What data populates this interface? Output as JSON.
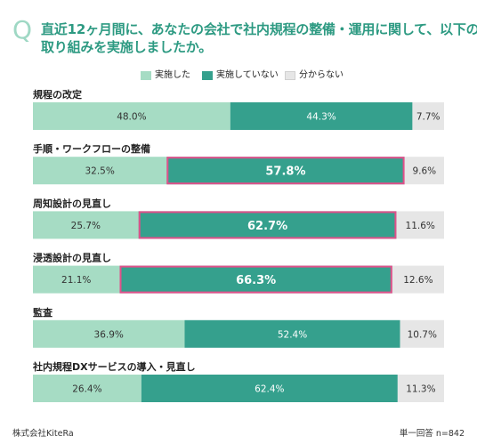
{
  "header": {
    "q_mark": "Q",
    "title_line1": "直近12ヶ月間に、あなたの会社で社内規程の整備・運用に関して、以下の",
    "title_line2": "取り組みを実施しましたか。"
  },
  "colors": {
    "title": "#2d9a82",
    "q_mark": "#9fd8c4",
    "implemented": "#a6dcc4",
    "not_implemented": "#35a08d",
    "unknown": "#e6e6e6",
    "highlight_border": "#e0508a"
  },
  "legend": [
    {
      "label": "実施した",
      "color": "#a6dcc4"
    },
    {
      "label": "実施していない",
      "color": "#35a08d"
    },
    {
      "label": "分からない",
      "color": "#e6e6e6"
    }
  ],
  "chart_data": {
    "type": "bar",
    "orientation": "horizontal",
    "stacked": true,
    "percent": true,
    "categories": [
      "規程の改定",
      "手順・ワークフローの整備",
      "周知設計の見直し",
      "浸透設計の見直し",
      "監査",
      "社内規程DXサービスの導入・見直し"
    ],
    "series": [
      {
        "name": "実施した",
        "values": [
          48.0,
          32.5,
          25.7,
          21.1,
          36.9,
          26.4
        ]
      },
      {
        "name": "実施していない",
        "values": [
          44.3,
          57.8,
          62.7,
          66.3,
          52.4,
          62.4
        ]
      },
      {
        "name": "分からない",
        "values": [
          7.7,
          9.6,
          11.6,
          12.6,
          10.7,
          11.3
        ]
      }
    ],
    "labels": [
      [
        "48.0%",
        "44.3%",
        "7.7%"
      ],
      [
        "32.5%",
        "57.8%",
        "9.6%"
      ],
      [
        "25.7%",
        "62.7%",
        "11.6%"
      ],
      [
        "21.1%",
        "66.3%",
        "12.6%"
      ],
      [
        "36.9%",
        "52.4%",
        "10.7%"
      ],
      [
        "26.4%",
        "62.4%",
        "11.3%"
      ]
    ],
    "highlighted": [
      false,
      true,
      true,
      true,
      false,
      false
    ],
    "xlim": [
      0,
      100
    ],
    "grid": false,
    "legend_position": "top-center"
  },
  "footer": {
    "source": "株式会社KiteRa",
    "note": "単一回答 n=842"
  }
}
